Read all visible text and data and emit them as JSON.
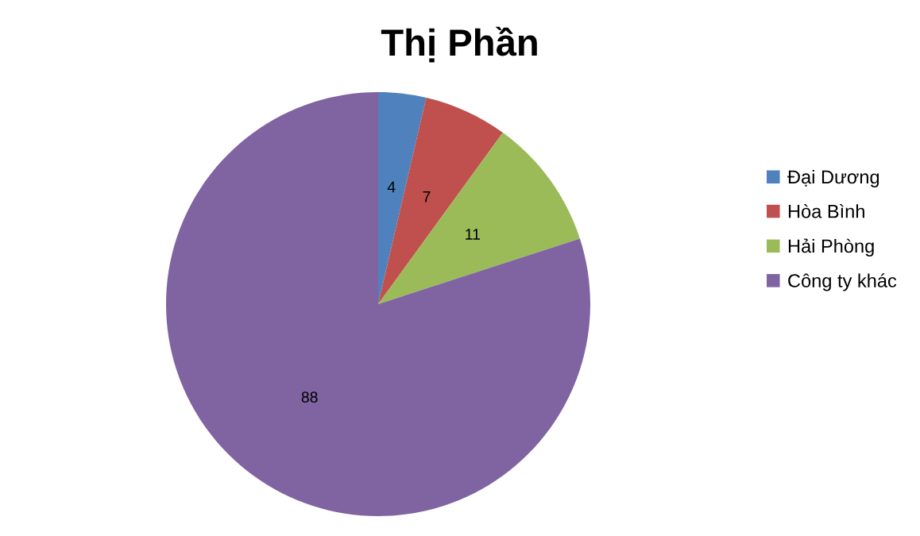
{
  "chart_data": {
    "type": "pie",
    "title": "Thị Phần",
    "categories": [
      "Đại Dương",
      "Hòa Bình",
      "Hải Phòng",
      "Công ty khác"
    ],
    "values": [
      4,
      7,
      11,
      88
    ],
    "colors": [
      "#4f81bd",
      "#c0504d",
      "#9bbb59",
      "#8064a2"
    ],
    "data_labels": true,
    "legend": "right"
  }
}
